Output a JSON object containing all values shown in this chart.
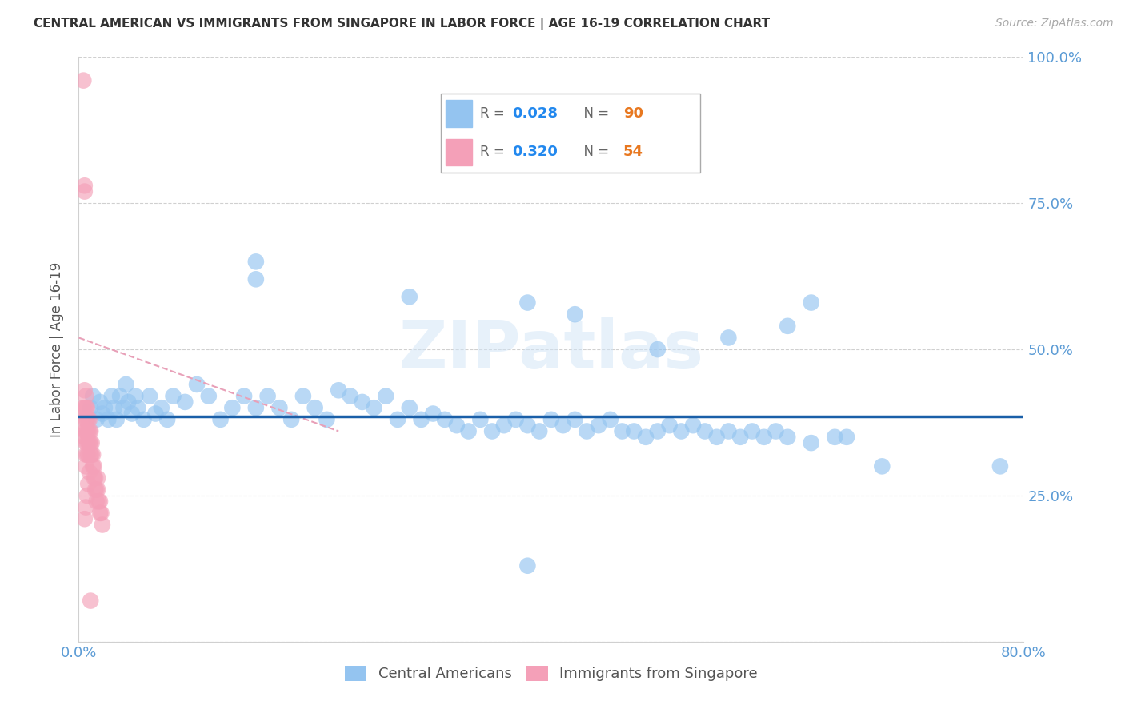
{
  "title": "CENTRAL AMERICAN VS IMMIGRANTS FROM SINGAPORE IN LABOR FORCE | AGE 16-19 CORRELATION CHART",
  "source": "Source: ZipAtlas.com",
  "ylabel": "In Labor Force | Age 16-19",
  "xlim": [
    0.0,
    0.8
  ],
  "ylim": [
    0.0,
    1.0
  ],
  "xticks": [
    0.0,
    0.1,
    0.2,
    0.3,
    0.4,
    0.5,
    0.6,
    0.7,
    0.8
  ],
  "yticks": [
    0.0,
    0.25,
    0.5,
    0.75,
    1.0
  ],
  "yticklabels_right": [
    "",
    "25.0%",
    "50.0%",
    "75.0%",
    "100.0%"
  ],
  "blue_R": 0.028,
  "blue_N": 90,
  "pink_R": 0.32,
  "pink_N": 54,
  "blue_color": "#94c4f0",
  "pink_color": "#f4a0b8",
  "blue_line_color": "#1a5fa8",
  "pink_line_color": "#e8a0b8",
  "watermark": "ZIPatlas",
  "blue_scatter_x": [
    0.01,
    0.012,
    0.015,
    0.018,
    0.02,
    0.022,
    0.025,
    0.028,
    0.03,
    0.032,
    0.035,
    0.038,
    0.04,
    0.042,
    0.045,
    0.048,
    0.05,
    0.055,
    0.06,
    0.065,
    0.07,
    0.075,
    0.08,
    0.09,
    0.1,
    0.11,
    0.12,
    0.13,
    0.14,
    0.15,
    0.16,
    0.17,
    0.18,
    0.19,
    0.2,
    0.21,
    0.22,
    0.23,
    0.24,
    0.25,
    0.26,
    0.27,
    0.28,
    0.29,
    0.3,
    0.31,
    0.32,
    0.33,
    0.34,
    0.35,
    0.36,
    0.37,
    0.38,
    0.39,
    0.4,
    0.41,
    0.42,
    0.43,
    0.44,
    0.45,
    0.46,
    0.47,
    0.48,
    0.49,
    0.5,
    0.51,
    0.52,
    0.53,
    0.54,
    0.55,
    0.56,
    0.57,
    0.58,
    0.59,
    0.6,
    0.62,
    0.64,
    0.65,
    0.68,
    0.78,
    0.15,
    0.28,
    0.38,
    0.42,
    0.49,
    0.55,
    0.6,
    0.62,
    0.15,
    0.38
  ],
  "blue_scatter_y": [
    0.4,
    0.42,
    0.38,
    0.41,
    0.39,
    0.4,
    0.38,
    0.42,
    0.4,
    0.38,
    0.42,
    0.4,
    0.44,
    0.41,
    0.39,
    0.42,
    0.4,
    0.38,
    0.42,
    0.39,
    0.4,
    0.38,
    0.42,
    0.41,
    0.44,
    0.42,
    0.38,
    0.4,
    0.42,
    0.4,
    0.42,
    0.4,
    0.38,
    0.42,
    0.4,
    0.38,
    0.43,
    0.42,
    0.41,
    0.4,
    0.42,
    0.38,
    0.4,
    0.38,
    0.39,
    0.38,
    0.37,
    0.36,
    0.38,
    0.36,
    0.37,
    0.38,
    0.37,
    0.36,
    0.38,
    0.37,
    0.38,
    0.36,
    0.37,
    0.38,
    0.36,
    0.36,
    0.35,
    0.36,
    0.37,
    0.36,
    0.37,
    0.36,
    0.35,
    0.36,
    0.35,
    0.36,
    0.35,
    0.36,
    0.35,
    0.34,
    0.35,
    0.35,
    0.3,
    0.3,
    0.62,
    0.59,
    0.58,
    0.56,
    0.5,
    0.52,
    0.54,
    0.58,
    0.65,
    0.13
  ],
  "pink_scatter_x": [
    0.004,
    0.004,
    0.005,
    0.005,
    0.005,
    0.005,
    0.005,
    0.005,
    0.005,
    0.006,
    0.006,
    0.006,
    0.006,
    0.006,
    0.006,
    0.006,
    0.007,
    0.007,
    0.007,
    0.007,
    0.007,
    0.008,
    0.008,
    0.008,
    0.008,
    0.009,
    0.009,
    0.009,
    0.01,
    0.01,
    0.01,
    0.011,
    0.011,
    0.012,
    0.012,
    0.013,
    0.013,
    0.014,
    0.014,
    0.015,
    0.015,
    0.016,
    0.016,
    0.017,
    0.018,
    0.018,
    0.019,
    0.02,
    0.005,
    0.006,
    0.007,
    0.008,
    0.009,
    0.01
  ],
  "pink_scatter_y": [
    0.96,
    0.4,
    0.78,
    0.77,
    0.43,
    0.4,
    0.38,
    0.36,
    0.35,
    0.42,
    0.4,
    0.38,
    0.36,
    0.34,
    0.32,
    0.3,
    0.4,
    0.38,
    0.36,
    0.34,
    0.32,
    0.38,
    0.36,
    0.34,
    0.32,
    0.38,
    0.36,
    0.34,
    0.36,
    0.34,
    0.32,
    0.34,
    0.32,
    0.32,
    0.3,
    0.3,
    0.28,
    0.28,
    0.26,
    0.26,
    0.24,
    0.28,
    0.26,
    0.24,
    0.24,
    0.22,
    0.22,
    0.2,
    0.21,
    0.23,
    0.25,
    0.27,
    0.29,
    0.07
  ],
  "blue_line_slope": 0.0,
  "blue_line_intercept": 0.385,
  "pink_line_x_start": 0.0,
  "pink_line_x_end": 0.22,
  "pink_line_y_start": 0.52,
  "pink_line_y_end": 0.36
}
